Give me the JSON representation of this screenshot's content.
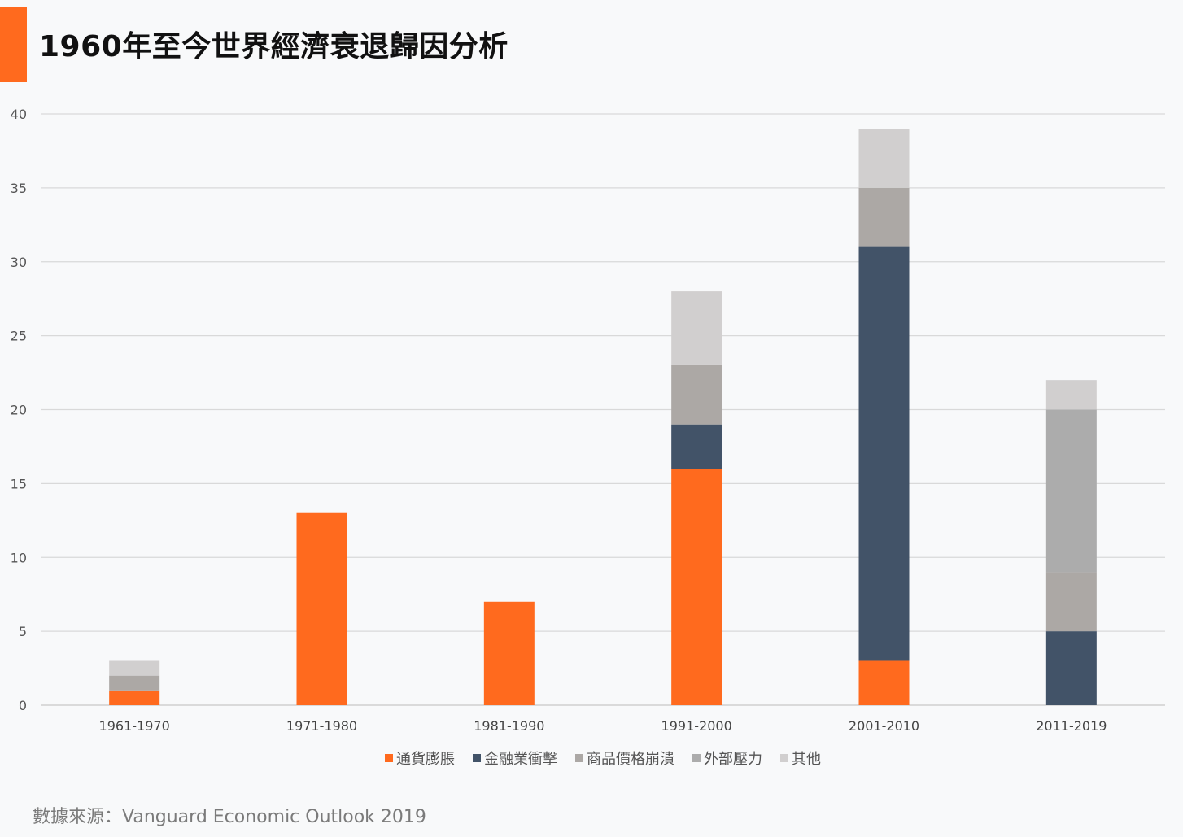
{
  "header": {
    "title": "1960年至今世界經濟衰退歸因分析"
  },
  "footer": {
    "source": "數據來源：Vanguard Economic Outlook 2019"
  },
  "colors": {
    "accent": "#ff6a1e",
    "background": "#f8f9fa",
    "gridline": "#d9d9d9"
  },
  "chart_data": {
    "type": "bar",
    "stacked": true,
    "title": "",
    "xlabel": "",
    "ylabel": "",
    "ylim": [
      0,
      40
    ],
    "yticks": [
      0,
      5,
      10,
      15,
      20,
      25,
      30,
      35,
      40
    ],
    "grid": true,
    "legend_position": "bottom",
    "categories": [
      "1961-1970",
      "1971-1980",
      "1981-1990",
      "1991-2000",
      "2001-2010",
      "2011-2019"
    ],
    "series": [
      {
        "name": "通貨膨脹",
        "color": "#ff6a1e",
        "values": [
          1,
          13,
          7,
          16,
          3,
          0
        ]
      },
      {
        "name": "金融業衝擊",
        "color": "#425368",
        "values": [
          0,
          0,
          0,
          3,
          28,
          5
        ]
      },
      {
        "name": "商品價格崩潰",
        "color": "#aca8a5",
        "values": [
          1,
          0,
          0,
          4,
          4,
          4
        ]
      },
      {
        "name": "外部壓力",
        "color": "#acacac",
        "values": [
          0,
          0,
          0,
          0,
          0,
          11
        ]
      },
      {
        "name": "其他",
        "color": "#d1cfcf",
        "values": [
          1,
          0,
          0,
          5,
          4,
          2
        ]
      }
    ]
  }
}
